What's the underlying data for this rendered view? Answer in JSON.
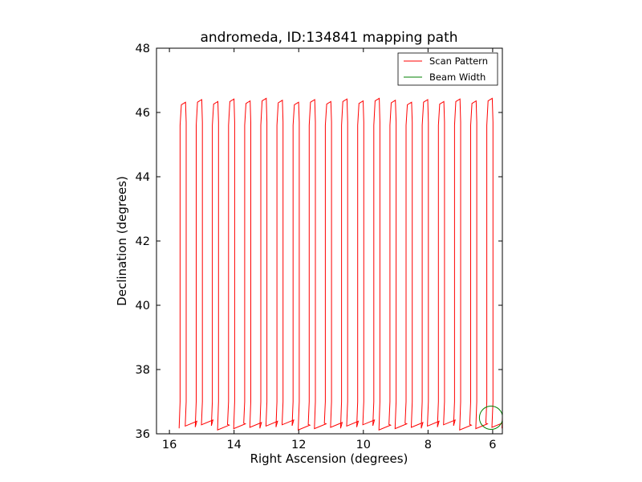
{
  "chart_data": {
    "type": "line",
    "title": "andromeda, ID:134841 mapping path",
    "xlabel": "Right Ascension (degrees)",
    "ylabel": "Declination (degrees)",
    "xlim": [
      16.4,
      5.7
    ],
    "ylim": [
      36,
      48
    ],
    "xticks": [
      16,
      14,
      12,
      10,
      8,
      6
    ],
    "yticks": [
      36,
      38,
      40,
      42,
      44,
      46,
      48
    ],
    "grid": false,
    "legend": {
      "placement": "top-right",
      "entries": [
        "Scan Pattern",
        "Beam Width"
      ]
    },
    "series": [
      {
        "name": "Scan Pattern",
        "color": "#ff0000",
        "scan_legs": {
          "count": 41,
          "ra_start": 15.69,
          "ra_step": -0.2497,
          "dec_bottom": 36.25,
          "dec_top": 46.3
        }
      },
      {
        "name": "Beam Width",
        "color": "#008000",
        "shape": "circle",
        "center": [
          6.05,
          36.5
        ],
        "radius_deg": 0.36
      }
    ]
  }
}
